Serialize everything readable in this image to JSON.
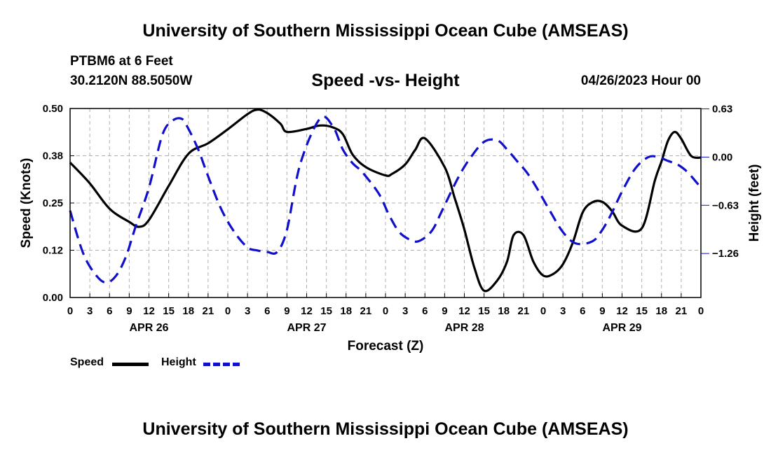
{
  "header": {
    "title": "University of Southern Mississippi Ocean Cube (AMSEAS)",
    "station": "PTBM6 at 6 Feet",
    "coords": "30.2120N  88.5050W",
    "subtitle": "Speed -vs- Height",
    "datetime": "04/26/2023 Hour 00"
  },
  "footer": {
    "title": "University of Southern Mississippi Ocean Cube (AMSEAS)"
  },
  "legend": {
    "speed_label": "Speed",
    "height_label": "Height"
  },
  "colors": {
    "speed": "#000000",
    "height": "#1010cc",
    "grid": "#b0b0b0"
  },
  "chart_data": {
    "type": "line",
    "title": "Speed -vs- Height",
    "xlabel": "Forecast (Z)",
    "ylabel": "Speed (Knots)",
    "y2label": "Height (feet)",
    "x_range": [
      0,
      96
    ],
    "x_tick_labels": [
      "0",
      "3",
      "6",
      "9",
      "12",
      "15",
      "18",
      "21",
      "0",
      "3",
      "6",
      "9",
      "12",
      "15",
      "18",
      "21",
      "0",
      "3",
      "6",
      "9",
      "12",
      "15",
      "18",
      "21",
      "0",
      "3",
      "6",
      "9",
      "12",
      "15",
      "18",
      "21",
      "0"
    ],
    "day_labels": [
      {
        "hour": 12,
        "label": "APR 26"
      },
      {
        "hour": 36,
        "label": "APR 27"
      },
      {
        "hour": 60,
        "label": "APR 28"
      },
      {
        "hour": 84,
        "label": "APR 29"
      }
    ],
    "y_range": [
      0,
      0.5
    ],
    "y_ticks": [
      0.0,
      0.125,
      0.25,
      0.375,
      0.5
    ],
    "y_tick_labels": [
      "0.00",
      "0.12",
      "0.25",
      "0.38",
      "0.50"
    ],
    "y2_range": [
      -1.835,
      0.635
    ],
    "y2_ticks": [
      0.63,
      0.0,
      -0.63,
      -1.26
    ],
    "y2_tick_labels": [
      "0.63",
      "0.00",
      "−0.63",
      "−1.26"
    ],
    "grid": true,
    "series": [
      {
        "name": "Speed",
        "axis": "left",
        "style": "solid",
        "x": [
          0,
          3,
          6,
          9,
          10.5,
          12,
          15,
          18,
          21,
          24,
          27,
          28.5,
          30,
          32,
          33,
          36,
          38,
          40,
          41.5,
          43,
          45,
          48,
          49,
          51,
          52.5,
          54,
          57,
          58.5,
          60,
          61.5,
          63,
          65,
          66.5,
          67.5,
          69,
          70.5,
          72,
          73.5,
          75,
          76.5,
          78,
          79.5,
          81,
          82.5,
          84,
          87,
          89,
          90,
          91,
          92,
          93,
          94.5,
          96
        ],
        "y": [
          0.357,
          0.302,
          0.235,
          0.2,
          0.187,
          0.205,
          0.295,
          0.38,
          0.408,
          0.445,
          0.485,
          0.497,
          0.488,
          0.46,
          0.438,
          0.446,
          0.455,
          0.45,
          0.432,
          0.378,
          0.345,
          0.323,
          0.327,
          0.352,
          0.39,
          0.421,
          0.345,
          0.265,
          0.18,
          0.08,
          0.018,
          0.045,
          0.095,
          0.165,
          0.165,
          0.095,
          0.058,
          0.062,
          0.088,
          0.145,
          0.225,
          0.252,
          0.253,
          0.228,
          0.19,
          0.183,
          0.31,
          0.36,
          0.415,
          0.438,
          0.42,
          0.375,
          0.37
        ]
      },
      {
        "name": "Height",
        "axis": "right",
        "style": "dashed",
        "x": [
          0,
          2,
          4,
          5.5,
          7,
          8.5,
          10,
          12,
          14,
          15.5,
          17,
          18,
          19.5,
          21,
          23,
          25,
          27,
          28.5,
          30,
          31.5,
          33,
          35,
          38,
          40,
          41.5,
          43,
          44.5,
          47,
          48.5,
          50,
          51.5,
          53,
          55,
          56.5,
          58,
          59.5,
          61,
          63,
          65,
          66.5,
          68,
          69.5,
          71,
          73,
          75,
          77,
          79.5,
          81,
          82.5,
          84,
          86,
          88,
          89.5,
          91,
          92.5,
          94,
          96
        ],
        "y": [
          -0.7,
          -1.26,
          -1.55,
          -1.64,
          -1.55,
          -1.3,
          -0.9,
          -0.4,
          0.28,
          0.47,
          0.5,
          0.37,
          0.1,
          -0.25,
          -0.68,
          -0.98,
          -1.18,
          -1.22,
          -1.24,
          -1.24,
          -0.95,
          -0.1,
          0.5,
          0.4,
          0.1,
          -0.08,
          -0.2,
          -0.48,
          -0.75,
          -0.97,
          -1.07,
          -1.1,
          -0.97,
          -0.72,
          -0.45,
          -0.2,
          0.0,
          0.2,
          0.22,
          0.1,
          -0.05,
          -0.2,
          -0.4,
          -0.7,
          -0.98,
          -1.13,
          -1.1,
          -0.95,
          -0.72,
          -0.45,
          -0.15,
          0.0,
          0.0,
          -0.05,
          -0.1,
          -0.2,
          -0.4
        ]
      }
    ]
  }
}
